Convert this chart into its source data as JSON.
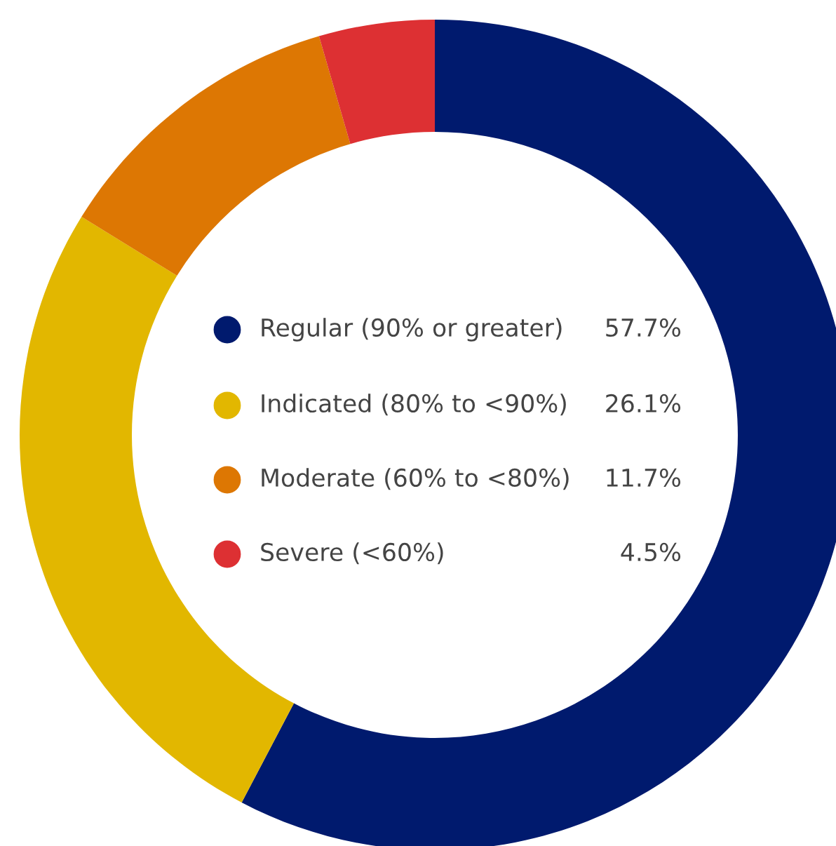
{
  "chart_data": {
    "type": "donut",
    "categories": [
      "Regular (90% or greater)",
      "Indicated (80% to <90%)",
      "Moderate (60% to <80%)",
      "Severe (<60%)"
    ],
    "values": [
      57.7,
      26.1,
      11.7,
      4.5
    ],
    "colors": [
      "#001a6e",
      "#e2b700",
      "#dd7703",
      "#dd3033"
    ],
    "value_labels": [
      "57.7%",
      "26.1%",
      "11.7%",
      "4.5%"
    ],
    "legend": "center"
  }
}
